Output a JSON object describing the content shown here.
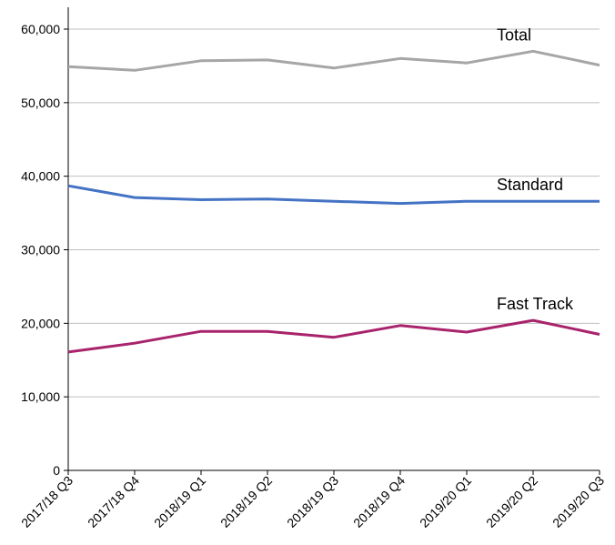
{
  "chart_data": {
    "type": "line",
    "title": "",
    "xlabel": "",
    "ylabel": "",
    "categories": [
      "2017/18 Q3",
      "2017/18 Q4",
      "2018/19 Q1",
      "2018/19 Q2",
      "2018/19 Q3",
      "2018/19 Q4",
      "2019/20 Q1",
      "2019/20 Q2",
      "2019/20 Q3"
    ],
    "ylim": [
      0,
      60000
    ],
    "yticks": [
      0,
      10000,
      20000,
      30000,
      40000,
      50000,
      60000
    ],
    "ytick_labels": [
      "0",
      "10,000",
      "20,000",
      "30,000",
      "40,000",
      "50,000",
      "60,000"
    ],
    "grid": true,
    "legend": "direct-labels",
    "series": [
      {
        "name": "Total",
        "color": "#a6a6a6",
        "values": [
          54900,
          54400,
          55700,
          55800,
          54700,
          56000,
          55400,
          57000,
          55100
        ]
      },
      {
        "name": "Standard",
        "color": "#4472c4",
        "values": [
          38700,
          37100,
          36800,
          36900,
          36600,
          36300,
          36600,
          36600,
          36600
        ]
      },
      {
        "name": "Fast Track",
        "color": "#a8236b",
        "values": [
          16100,
          17300,
          18900,
          18900,
          18100,
          19700,
          18800,
          20400,
          18500
        ]
      }
    ]
  }
}
